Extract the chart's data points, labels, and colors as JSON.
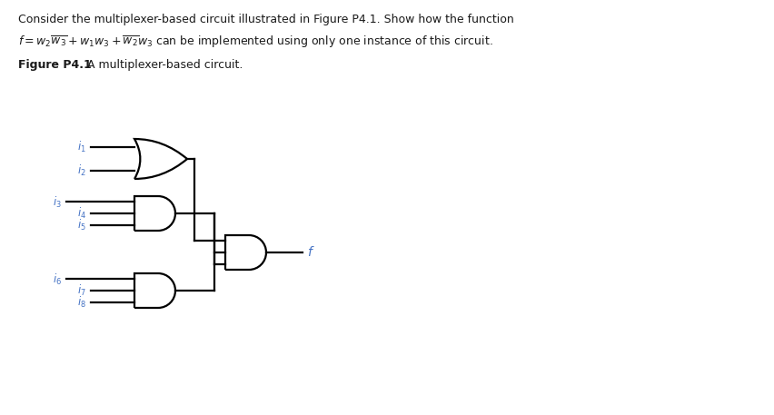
{
  "bg_color": "#ffffff",
  "text_color": "#1a1a1a",
  "label_color": "#4472c4",
  "line_color": "#000000",
  "title_line1": "Consider the multiplexer-based circuit illustrated in Figure P4.1. Show how the function",
  "title_line2": "$f = w_2\\overline{w_3} + w_1w_3 + \\overline{w_2}w_3$ can be implemented using only one instance of this circuit.",
  "figure_bold": "Figure P4.1",
  "figure_rest": " A multiplexer-based circuit.",
  "input_labels": [
    "$i_1$",
    "$i_2$",
    "$i_3$",
    "$i_4$",
    "$i_5$",
    "$i_6$",
    "$i_7$",
    "$i_8$"
  ],
  "output_label": "f",
  "lw": 1.6
}
